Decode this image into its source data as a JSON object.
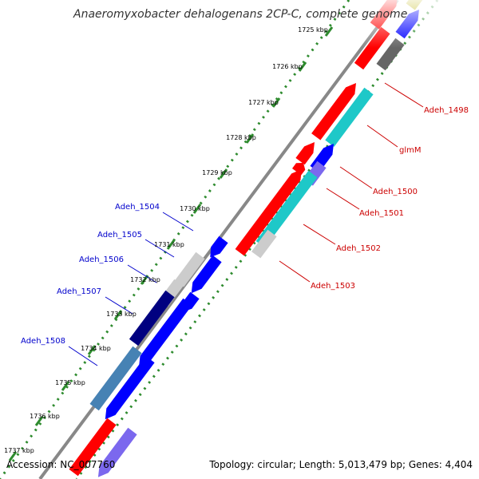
{
  "title": "Anaeromyxobacter dehalogenans 2CP-C, complete genome",
  "footer": {
    "accession": "Accession: NC_007760",
    "summary": "Topology: circular; Length: 5,013,479 bp; Genes: 4,404"
  },
  "colors": {
    "backbone": "#888888",
    "tick_ring": "#2e8b2e",
    "label_right": "#cc0000",
    "label_left": "#0000cc"
  },
  "ticks": [
    {
      "label": "1725 kbp"
    },
    {
      "label": "1726 kbp"
    },
    {
      "label": "1727 kbp"
    },
    {
      "label": "1728 kbp"
    },
    {
      "label": "1729 kbp"
    },
    {
      "label": "1730 kbp"
    },
    {
      "label": "1731 kbp"
    },
    {
      "label": "1732 kbp"
    },
    {
      "label": "1733 kbp"
    },
    {
      "label": "1734 kbp"
    },
    {
      "label": "1735 kbp"
    },
    {
      "label": "1736 kbp"
    },
    {
      "label": "1737 kbp"
    }
  ],
  "gene_labels_right": [
    {
      "name": "Adeh_1498"
    },
    {
      "name": "glmM"
    },
    {
      "name": "Adeh_1500"
    },
    {
      "name": "Adeh_1501"
    },
    {
      "name": "Adeh_1502"
    },
    {
      "name": "Adeh_1503"
    }
  ],
  "gene_labels_left": [
    {
      "name": "Adeh_1504"
    },
    {
      "name": "Adeh_1505"
    },
    {
      "name": "Adeh_1506"
    },
    {
      "name": "Adeh_1507"
    },
    {
      "name": "Adeh_1508"
    }
  ],
  "features": [
    {
      "name": "feature-top-1",
      "color": "#b8b000"
    },
    {
      "name": "feature-top-2",
      "color": "#ff0000"
    },
    {
      "name": "feature-top-3",
      "color": "#0000ff"
    },
    {
      "name": "feature-top-4",
      "color": "#ff0000"
    },
    {
      "name": "feature-top-5",
      "color": "#666666"
    },
    {
      "name": "feature-adeh-1498",
      "color": "#ff0000"
    },
    {
      "name": "feature-glmm",
      "color": "#1ec8c8"
    },
    {
      "name": "feature-adeh-1500-red",
      "color": "#ff0000"
    },
    {
      "name": "feature-adeh-1500",
      "color": "#0000ff"
    },
    {
      "name": "feature-adeh-1501-red",
      "color": "#ff0000"
    },
    {
      "name": "feature-adeh-1501",
      "color": "#7b68ee"
    },
    {
      "name": "feature-adeh-1502-red",
      "color": "#ff0000"
    },
    {
      "name": "feature-adeh-1502",
      "color": "#1ec8c8"
    },
    {
      "name": "feature-adeh-1503",
      "color": "#cccccc"
    },
    {
      "name": "feature-adeh-1504",
      "color": "#0000ff"
    },
    {
      "name": "feature-adeh-1505",
      "color": "#cccccc"
    },
    {
      "name": "feature-adeh-1505-blue",
      "color": "#0000ff"
    },
    {
      "name": "feature-adeh-1506",
      "color": "#cccccc"
    },
    {
      "name": "feature-adeh-1506-blue",
      "color": "#0000ff"
    },
    {
      "name": "feature-adeh-1507",
      "color": "#000080"
    },
    {
      "name": "feature-adeh-1507-blue",
      "color": "#0000ff"
    },
    {
      "name": "feature-adeh-1508",
      "color": "#4682b4"
    },
    {
      "name": "feature-adeh-1508-blue",
      "color": "#0000ff"
    },
    {
      "name": "feature-bottom-red",
      "color": "#ff0000"
    },
    {
      "name": "feature-bottom-purple",
      "color": "#7b68ee"
    }
  ]
}
